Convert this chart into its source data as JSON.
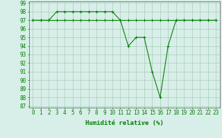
{
  "series1_x": [
    0,
    1,
    2,
    3,
    4,
    5,
    6,
    7,
    8,
    9,
    10,
    11,
    12,
    13,
    14,
    15,
    16,
    17,
    18,
    19,
    20,
    21,
    22,
    23
  ],
  "series1_y": [
    97,
    97,
    97,
    97,
    97,
    97,
    97,
    97,
    97,
    97,
    97,
    97,
    97,
    97,
    97,
    97,
    97,
    97,
    97,
    97,
    97,
    97,
    97,
    97
  ],
  "series2_x": [
    0,
    1,
    2,
    3,
    4,
    5,
    6,
    7,
    8,
    9,
    10,
    11,
    12,
    13,
    14,
    15,
    16,
    17,
    18,
    19,
    20,
    21,
    22,
    23
  ],
  "series2_y": [
    97,
    97,
    97,
    98,
    98,
    98,
    98,
    98,
    98,
    98,
    98,
    97,
    94,
    95,
    95,
    91,
    88,
    94,
    97,
    97,
    97,
    97,
    97,
    97
  ],
  "line_color": "#008000",
  "bg_color": "#d8eee8",
  "grid_color": "#aaccbb",
  "xlabel": "Humidité relative (%)",
  "ylim": [
    87,
    99
  ],
  "xlim": [
    -0.5,
    23.5
  ],
  "yticks": [
    87,
    88,
    89,
    90,
    91,
    92,
    93,
    94,
    95,
    96,
    97,
    98,
    99
  ],
  "xticks": [
    0,
    1,
    2,
    3,
    4,
    5,
    6,
    7,
    8,
    9,
    10,
    11,
    12,
    13,
    14,
    15,
    16,
    17,
    18,
    19,
    20,
    21,
    22,
    23
  ],
  "xlabel_fontsize": 6.5,
  "tick_fontsize": 5.5,
  "marker": "+",
  "markersize": 3.5,
  "linewidth": 0.8
}
